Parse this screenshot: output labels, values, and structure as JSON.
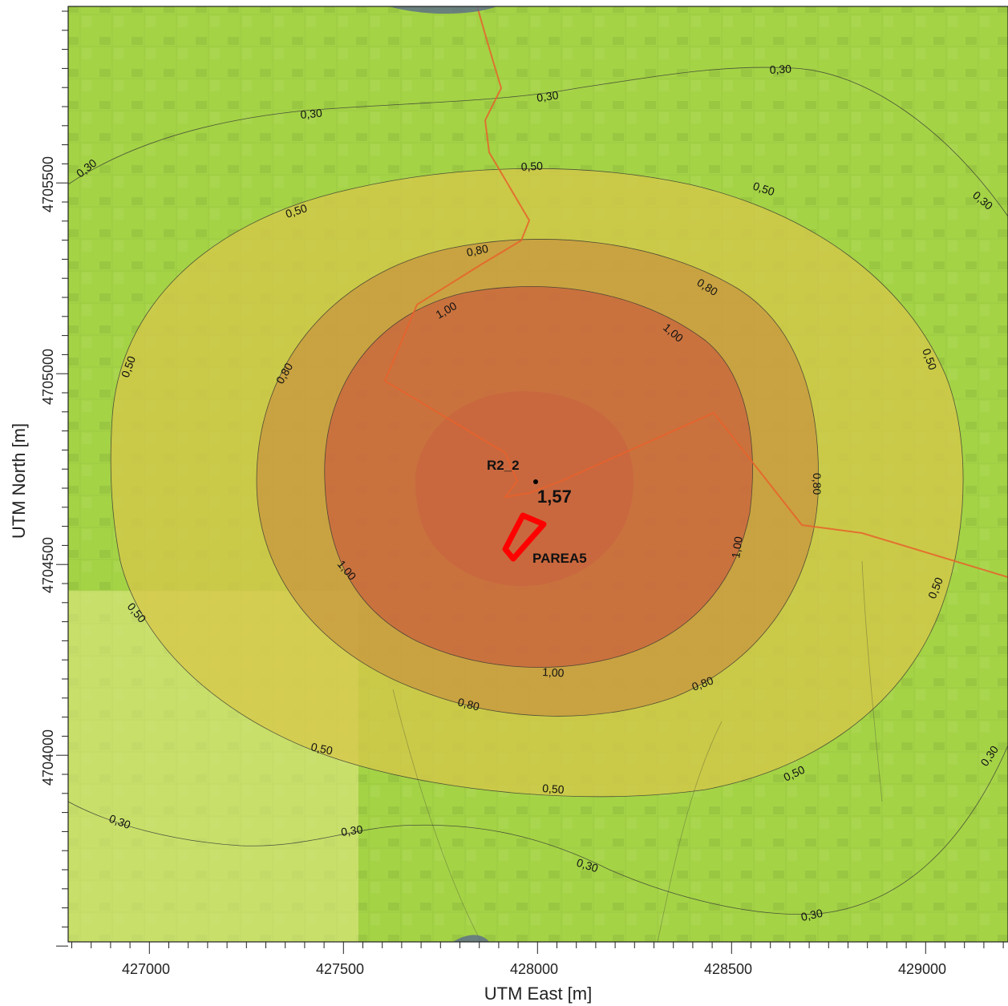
{
  "axes": {
    "x_title": "UTM East [m]",
    "y_title": "UTM North [m]",
    "x_ticks": [
      "427000",
      "427500",
      "428000",
      "428500",
      "429000"
    ],
    "y_ticks": [
      "4705500",
      "4705000",
      "4704500",
      "4704000"
    ]
  },
  "contours": {
    "level_030": "0,30",
    "level_050": "0,50",
    "level_080": "0,80",
    "level_100": "1,00"
  },
  "receptor": {
    "name": "R2_2",
    "value": "1,57"
  },
  "source": {
    "name": "PAREA5"
  },
  "colors": {
    "band_030": "#9fd13c",
    "band_050": "#d7c74a",
    "band_080": "#c8953f",
    "band_100": "#c9653d",
    "band_max": "#c85540",
    "source_outline": "#ff0000",
    "route_line": "#e8612c"
  }
}
